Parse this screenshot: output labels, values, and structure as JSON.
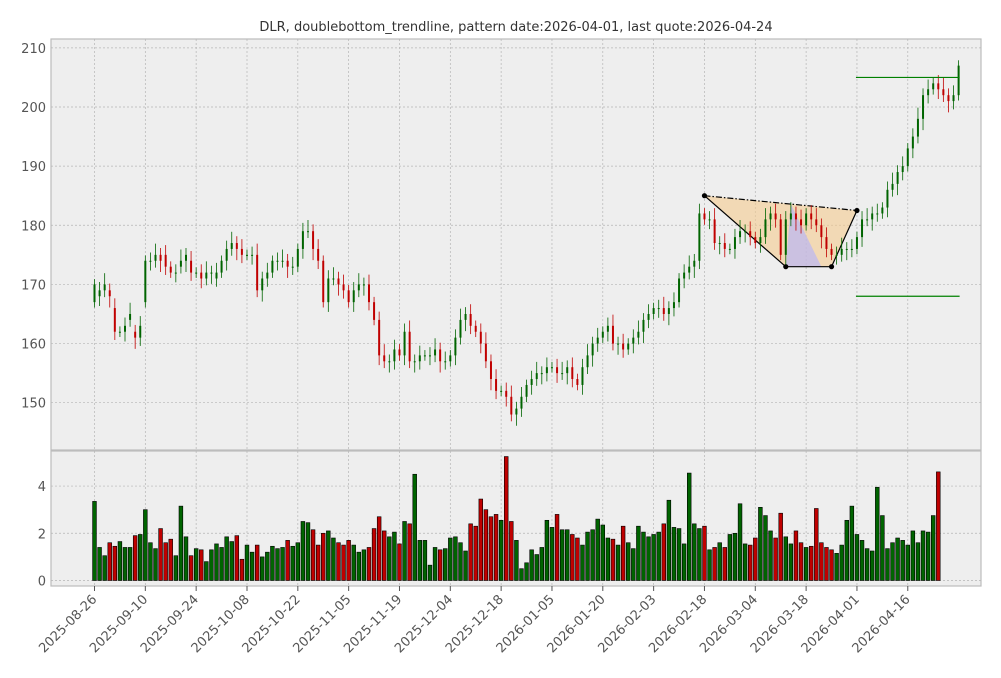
{
  "chart_data": {
    "type": "candlestick",
    "title": "DLR, doublebottom_trendline, pattern date:2026-04-01, last quote:2026-04-24",
    "price_axis": {
      "ylim": [
        142,
        211.5
      ],
      "ticks": [
        150,
        160,
        170,
        180,
        190,
        200,
        210
      ]
    },
    "volume_axis": {
      "ylim": [
        0,
        5.4
      ],
      "ticks": [
        0,
        2,
        4
      ]
    },
    "x_tick_labels": [
      "2025-08-26",
      "2025-09-10",
      "2025-09-24",
      "2025-10-08",
      "2025-10-22",
      "2025-11-05",
      "2025-11-19",
      "2025-12-04",
      "2025-12-18",
      "2026-01-05",
      "2026-01-20",
      "2026-02-03",
      "2026-02-18",
      "2026-03-04",
      "2026-03-18",
      "2026-04-01",
      "2026-04-16"
    ],
    "x_tick_index": [
      0,
      10,
      20,
      30,
      40,
      50,
      60,
      70,
      80,
      90,
      100,
      110,
      120,
      130,
      140,
      150,
      160
    ],
    "candles": [
      [
        167,
        170
      ],
      [
        168,
        169
      ],
      [
        169,
        170
      ],
      [
        169,
        168
      ],
      [
        166,
        162
      ],
      [
        162,
        162
      ],
      [
        162,
        163
      ],
      [
        164,
        165
      ],
      [
        162,
        161
      ],
      [
        161,
        163
      ],
      [
        167,
        174
      ],
      [
        174,
        174
      ],
      [
        174,
        175
      ],
      [
        175,
        174
      ],
      [
        175,
        173
      ],
      [
        173,
        172
      ],
      [
        172,
        172
      ],
      [
        173,
        174
      ],
      [
        174,
        175
      ],
      [
        174,
        172
      ],
      [
        172,
        172
      ],
      [
        172,
        171
      ],
      [
        171,
        172
      ],
      [
        172,
        172
      ],
      [
        171,
        172
      ],
      [
        172,
        174
      ],
      [
        174,
        176
      ],
      [
        176,
        177
      ],
      [
        177,
        176
      ],
      [
        176,
        175
      ],
      [
        175,
        175
      ],
      [
        175,
        175
      ],
      [
        175,
        169
      ],
      [
        169,
        171
      ],
      [
        171,
        172
      ],
      [
        172,
        174
      ],
      [
        174,
        174
      ],
      [
        174,
        174
      ],
      [
        174,
        173
      ],
      [
        173,
        173
      ],
      [
        173,
        176
      ],
      [
        176,
        179
      ],
      [
        179,
        179
      ],
      [
        179,
        176
      ],
      [
        176,
        174
      ],
      [
        174,
        167
      ],
      [
        167,
        171
      ],
      [
        171,
        171
      ],
      [
        171,
        170
      ],
      [
        170,
        169
      ],
      [
        169,
        167
      ],
      [
        167,
        169
      ],
      [
        169,
        170
      ],
      [
        170,
        170
      ],
      [
        170,
        167
      ],
      [
        167,
        164
      ],
      [
        164,
        158
      ],
      [
        158,
        157
      ],
      [
        157,
        157
      ],
      [
        157,
        159
      ],
      [
        159,
        158
      ],
      [
        158,
        162
      ],
      [
        162,
        157
      ],
      [
        157,
        157
      ],
      [
        157,
        158
      ],
      [
        158,
        158
      ],
      [
        158,
        158
      ],
      [
        158,
        159
      ],
      [
        159,
        157
      ],
      [
        157,
        157
      ],
      [
        157,
        158
      ],
      [
        158,
        161
      ],
      [
        161,
        164
      ],
      [
        164,
        165
      ],
      [
        165,
        163
      ],
      [
        163,
        162
      ],
      [
        162,
        160
      ],
      [
        160,
        157
      ],
      [
        157,
        154
      ],
      [
        154,
        152
      ],
      [
        152,
        152
      ],
      [
        152,
        151
      ],
      [
        151,
        148
      ],
      [
        148,
        149
      ],
      [
        149,
        151
      ],
      [
        151,
        153
      ],
      [
        153,
        154
      ],
      [
        154,
        155
      ],
      [
        155,
        155
      ],
      [
        155,
        156
      ],
      [
        156,
        156
      ],
      [
        156,
        155
      ],
      [
        155,
        155
      ],
      [
        155,
        156
      ],
      [
        156,
        154
      ],
      [
        154,
        153
      ],
      [
        153,
        156
      ],
      [
        156,
        158
      ],
      [
        158,
        160
      ],
      [
        160,
        161
      ],
      [
        161,
        162
      ],
      [
        162,
        163
      ],
      [
        163,
        160
      ],
      [
        160,
        160
      ],
      [
        160,
        159
      ],
      [
        159,
        160
      ],
      [
        160,
        161
      ],
      [
        161,
        162
      ],
      [
        162,
        164
      ],
      [
        164,
        165
      ],
      [
        165,
        166
      ],
      [
        166,
        166
      ],
      [
        166,
        165
      ],
      [
        165,
        166
      ],
      [
        166,
        167
      ],
      [
        167,
        171
      ],
      [
        171,
        172
      ],
      [
        172,
        173
      ],
      [
        173,
        174
      ],
      [
        174,
        182
      ],
      [
        182,
        181
      ],
      [
        181,
        181
      ],
      [
        181,
        177
      ],
      [
        177,
        177
      ],
      [
        177,
        176
      ],
      [
        176,
        176
      ],
      [
        176,
        178
      ],
      [
        178,
        179
      ],
      [
        179,
        179
      ],
      [
        179,
        178
      ],
      [
        178,
        177
      ],
      [
        177,
        178
      ],
      [
        178,
        181
      ],
      [
        181,
        182
      ],
      [
        182,
        181
      ],
      [
        181,
        175
      ],
      [
        175,
        181
      ],
      [
        181,
        182
      ],
      [
        182,
        181
      ],
      [
        181,
        180
      ],
      [
        180,
        182
      ],
      [
        182,
        181
      ],
      [
        181,
        180
      ],
      [
        180,
        178
      ],
      [
        178,
        176
      ],
      [
        176,
        175
      ],
      [
        175,
        175
      ],
      [
        175,
        176
      ],
      [
        176,
        176
      ],
      [
        176,
        176
      ],
      [
        176,
        178
      ],
      [
        178,
        181
      ],
      [
        181,
        181
      ],
      [
        181,
        182
      ],
      [
        182,
        182
      ],
      [
        182,
        183
      ],
      [
        183,
        186
      ],
      [
        186,
        187
      ],
      [
        187,
        189
      ],
      [
        189,
        190
      ],
      [
        190,
        193
      ],
      [
        193,
        195
      ],
      [
        195,
        198
      ],
      [
        198,
        202
      ],
      [
        202,
        203
      ],
      [
        203,
        204
      ],
      [
        204,
        203
      ],
      [
        203,
        202
      ],
      [
        202,
        201
      ],
      [
        201,
        202
      ],
      [
        202,
        207
      ]
    ],
    "volumes": [
      3.35,
      1.4,
      1.05,
      1.6,
      1.45,
      1.65,
      1.4,
      1.4,
      1.9,
      1.95,
      3.0,
      1.6,
      1.35,
      2.2,
      1.6,
      1.75,
      1.05,
      3.15,
      1.85,
      1.05,
      1.35,
      1.3,
      0.8,
      1.3,
      1.55,
      1.4,
      1.85,
      1.65,
      1.9,
      0.9,
      1.5,
      1.2,
      1.5,
      1.0,
      1.2,
      1.45,
      1.35,
      1.4,
      1.7,
      1.45,
      1.6,
      2.5,
      2.45,
      2.15,
      1.5,
      2.0,
      2.1,
      1.8,
      1.6,
      1.5,
      1.7,
      1.5,
      1.2,
      1.3,
      1.4,
      2.2,
      2.7,
      2.1,
      1.85,
      2.05,
      1.55,
      2.5,
      2.4,
      4.5,
      1.7,
      1.7,
      0.65,
      1.4,
      1.3,
      1.35,
      1.8,
      1.85,
      1.6,
      1.25,
      2.4,
      2.3,
      3.45,
      3.0,
      2.7,
      2.8,
      2.55,
      5.25,
      2.5,
      1.7,
      0.5,
      0.75,
      1.3,
      1.1,
      1.4,
      2.55,
      2.25,
      2.8,
      2.15,
      2.15,
      1.95,
      1.8,
      1.5,
      2.05,
      2.15,
      2.6,
      2.35,
      1.8,
      1.75,
      1.5,
      2.3,
      1.6,
      1.35,
      2.3,
      2.05,
      1.85,
      1.95,
      2.05,
      2.4,
      3.4,
      2.25,
      2.2,
      1.55,
      4.55,
      2.4,
      2.2,
      2.3,
      1.3,
      1.4,
      1.6,
      1.4,
      1.95,
      2.0,
      3.25,
      1.55,
      1.5,
      1.8,
      3.1,
      2.75,
      2.1,
      1.8,
      2.85,
      1.85,
      1.55,
      2.1,
      1.6,
      1.4,
      1.45,
      3.05,
      1.6,
      1.4,
      1.3,
      1.15,
      1.5,
      2.55,
      3.15,
      1.95,
      1.7,
      1.35,
      1.25,
      3.95,
      2.75,
      1.35,
      1.6,
      1.8,
      1.7,
      1.5,
      2.1,
      1.6,
      2.1,
      2.05,
      2.75,
      4.6
    ],
    "pattern": {
      "points": [
        [
          120,
          185
        ],
        [
          136,
          173
        ],
        [
          145,
          173
        ],
        [
          150,
          182.5
        ]
      ],
      "trendline": [
        [
          120,
          185
        ],
        [
          150,
          182.5
        ]
      ]
    },
    "levels": [
      {
        "value": 205,
        "from": 150,
        "to": 170
      },
      {
        "value": 168,
        "from": 150,
        "to": 170
      }
    ],
    "colors": {
      "up": "#006400",
      "down": "#c00000",
      "level": "#008000",
      "pattern_fill": "#f5cc8f",
      "inner_fill": "#b0b0ff"
    }
  }
}
